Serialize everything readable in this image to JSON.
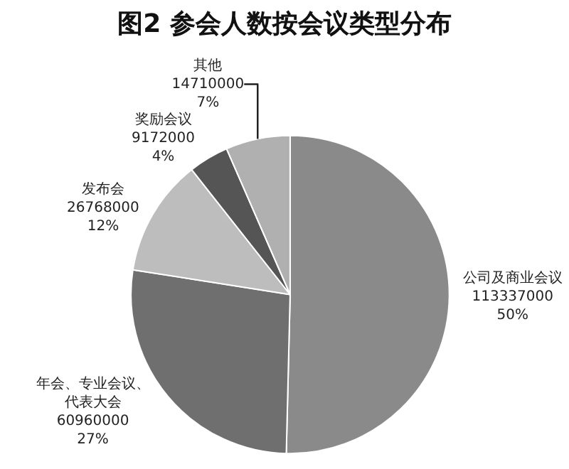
{
  "chart_data": {
    "type": "pie",
    "title": "图2 参会人数按会议类型分布",
    "categories": [
      "公司及商业会议",
      "年会、专业会议、代表大会",
      "发布会",
      "奖励会议",
      "其他"
    ],
    "values": [
      113337000,
      60960000,
      26768000,
      9172000,
      14710000
    ],
    "value_labels": [
      "113337000\n50%",
      "60960000\n27%",
      "26768000\n12%",
      "9172000\n4%",
      "14710000\n7%"
    ],
    "colors": [
      "#8a8a8a",
      "#6f6f6f",
      "#bdbdbd",
      "#555555",
      "#b0b0b0"
    ],
    "legend": false
  }
}
